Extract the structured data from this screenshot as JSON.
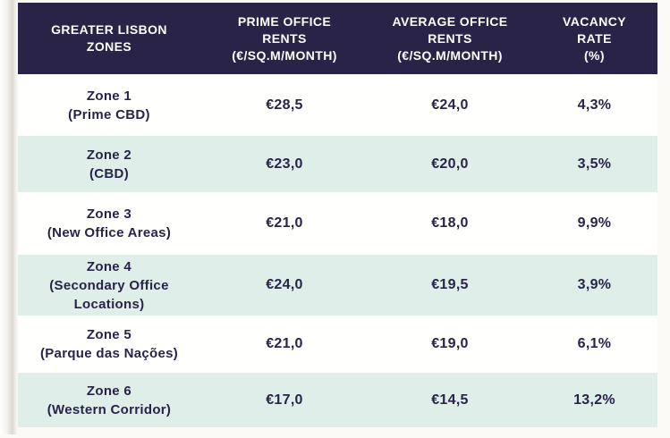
{
  "colors": {
    "header_bg": "#292347",
    "header_text": "#ffffff",
    "row_bg": "#ffffff",
    "row_alt_bg": "#dfeee8",
    "body_text": "#29234a"
  },
  "table": {
    "header": {
      "zones_lines": [
        "GREATER LISBON",
        "ZONES"
      ],
      "prime_lines": [
        "PRIME OFFICE",
        "RENTS",
        "(€/SQ.M/MONTH)"
      ],
      "average_lines": [
        "AVERAGE OFFICE",
        "RENTS",
        "(€/SQ.M/MONTH)"
      ],
      "vacancy_lines": [
        "VACANCY",
        "RATE",
        "(%)"
      ]
    },
    "rows": [
      {
        "zone_lines": [
          "Zone 1",
          "(Prime CBD)"
        ],
        "prime": "€28,5",
        "average": "€24,0",
        "vacancy": "4,3%"
      },
      {
        "zone_lines": [
          "Zone 2",
          "(CBD)"
        ],
        "prime": "€23,0",
        "average": "€20,0",
        "vacancy": "3,5%"
      },
      {
        "zone_lines": [
          "Zone 3",
          "(New Office Areas)"
        ],
        "prime": "€21,0",
        "average": "€18,0",
        "vacancy": "9,9%"
      },
      {
        "zone_lines": [
          "Zone 4",
          "(Secondary Office",
          "Locations)"
        ],
        "prime": "€24,0",
        "average": "€19,5",
        "vacancy": "3,9%"
      },
      {
        "zone_lines": [
          "Zone 5",
          "(Parque das Nações)"
        ],
        "prime": "€21,0",
        "average": "€19,0",
        "vacancy": "6,1%"
      },
      {
        "zone_lines": [
          "Zone 6",
          "(Western Corridor)"
        ],
        "prime": "€17,0",
        "average": "€14,5",
        "vacancy": "13,2%"
      }
    ]
  },
  "chart_data": {
    "type": "table",
    "title": "Greater Lisbon office market by zone",
    "columns": [
      "GREATER LISBON ZONES",
      "PRIME OFFICE RENTS (€/SQ.M/MONTH)",
      "AVERAGE OFFICE RENTS (€/SQ.M/MONTH)",
      "VACANCY RATE (%)"
    ],
    "rows": [
      [
        "Zone 1 (Prime CBD)",
        28.5,
        24.0,
        4.3
      ],
      [
        "Zone 2 (CBD)",
        23.0,
        20.0,
        3.5
      ],
      [
        "Zone 3 (New Office Areas)",
        21.0,
        18.0,
        9.9
      ],
      [
        "Zone 4 (Secondary Office Locations)",
        24.0,
        19.5,
        3.9
      ],
      [
        "Zone 5 (Parque das Nações)",
        21.0,
        19.0,
        6.1
      ],
      [
        "Zone 6 (Western Corridor)",
        17.0,
        14.5,
        13.2
      ]
    ],
    "layout": {
      "header_style": "dark navy band, white caps text",
      "zebra_striping": "white / pale mint",
      "decimal_separator": "comma"
    }
  }
}
